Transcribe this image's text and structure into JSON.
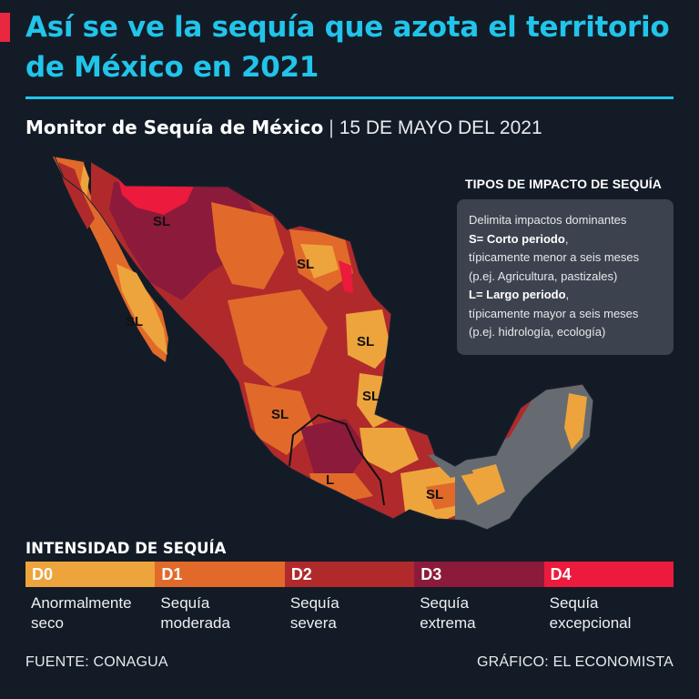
{
  "header": {
    "title": "Así se ve la sequía que azota el territorio de México en 2021",
    "subtitle_strong": "Monitor de Sequía de México",
    "subtitle_sep": "|",
    "subtitle_date": "15 DE MAYO DEL 2021"
  },
  "map": {
    "labels": [
      "SL",
      "SL",
      "SL",
      "SL",
      "SL",
      "SL",
      "L",
      "SL"
    ]
  },
  "impact_box": {
    "title": "TIPOS DE IMPACTO DE SEQUÍA",
    "line1": "Delimita impactos dominantes",
    "s_label": "S= Corto periodo",
    "s_desc_1": "típicamente menor a seis meses",
    "s_desc_2": "(p.ej. Agricultura, pastizales)",
    "l_label": "L= Largo periodo",
    "l_desc_1": "típicamente mayor a seis meses",
    "l_desc_2": "(p.ej. hidrología, ecología)"
  },
  "legend": {
    "title": "INTENSIDAD DE SEQUÍA",
    "items": [
      {
        "code": "D0",
        "label_1": "Anormalmente",
        "label_2": "seco",
        "color": "#eda43c"
      },
      {
        "code": "D1",
        "label_1": "Sequía",
        "label_2": "moderada",
        "color": "#e16a2a"
      },
      {
        "code": "D2",
        "label_1": "Sequía",
        "label_2": "severa",
        "color": "#b02a2c"
      },
      {
        "code": "D3",
        "label_1": "Sequía",
        "label_2": "extrema",
        "color": "#8c1a3a"
      },
      {
        "code": "D4",
        "label_1": "Sequía",
        "label_2": "excepcional",
        "color": "#ec1a3c"
      }
    ],
    "no_drought_color": "#666b72"
  },
  "footer": {
    "source": "FUENTE: CONAGUA",
    "credit": "GRÁFICO: EL ECONOMISTA"
  }
}
